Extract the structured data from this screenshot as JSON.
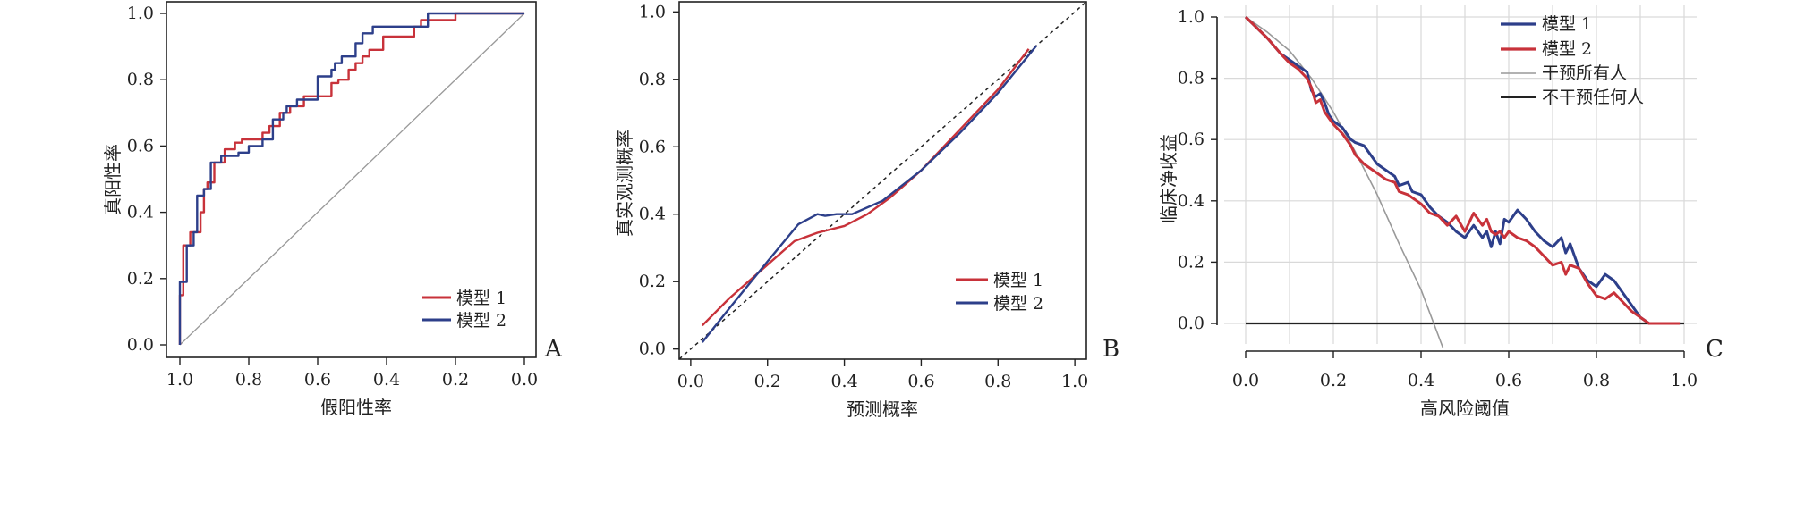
{
  "colors": {
    "model1": "#c8323a",
    "model2": "#2d3f8a",
    "grid": "#d9d9d9",
    "ref_gray": "#999999",
    "black": "#222222"
  },
  "chart_data": [
    {
      "panel": "A",
      "type": "line",
      "xlabel": "假阳性率",
      "ylabel": "真阳性率",
      "xlim": [
        1.0,
        0.0
      ],
      "ylim": [
        0.0,
        1.0
      ],
      "x_reversed": true,
      "xticks": [
        "1.0",
        "0.8",
        "0.6",
        "0.4",
        "0.2",
        "0.0"
      ],
      "yticks": [
        "0.0",
        "0.2",
        "0.4",
        "0.6",
        "0.8",
        "1.0"
      ],
      "grid": false,
      "legend_position": "bottom-right",
      "series": [
        {
          "name": "模型 1",
          "x": [
            1.0,
            1.0,
            0.99,
            0.99,
            0.97,
            0.97,
            0.94,
            0.94,
            0.93,
            0.93,
            0.92,
            0.92,
            0.9,
            0.9,
            0.87,
            0.87,
            0.84,
            0.84,
            0.82,
            0.82,
            0.76,
            0.76,
            0.74,
            0.74,
            0.71,
            0.71,
            0.68,
            0.68,
            0.64,
            0.64,
            0.56,
            0.56,
            0.54,
            0.54,
            0.51,
            0.51,
            0.49,
            0.49,
            0.47,
            0.47,
            0.45,
            0.45,
            0.41,
            0.41,
            0.32,
            0.32,
            0.3,
            0.3,
            0.2,
            0.2,
            0.0
          ],
          "y": [
            0.0,
            0.15,
            0.15,
            0.3,
            0.3,
            0.34,
            0.34,
            0.4,
            0.4,
            0.47,
            0.47,
            0.49,
            0.49,
            0.55,
            0.55,
            0.59,
            0.59,
            0.61,
            0.61,
            0.62,
            0.62,
            0.64,
            0.64,
            0.66,
            0.66,
            0.7,
            0.7,
            0.72,
            0.72,
            0.75,
            0.75,
            0.79,
            0.79,
            0.8,
            0.8,
            0.83,
            0.83,
            0.85,
            0.85,
            0.87,
            0.87,
            0.89,
            0.89,
            0.93,
            0.93,
            0.96,
            0.96,
            0.98,
            0.98,
            1.0,
            1.0
          ]
        },
        {
          "name": "模型 2",
          "x": [
            1.0,
            1.0,
            0.98,
            0.98,
            0.96,
            0.96,
            0.95,
            0.95,
            0.93,
            0.93,
            0.91,
            0.91,
            0.88,
            0.88,
            0.83,
            0.83,
            0.8,
            0.8,
            0.76,
            0.76,
            0.73,
            0.73,
            0.7,
            0.7,
            0.69,
            0.69,
            0.66,
            0.66,
            0.6,
            0.6,
            0.56,
            0.56,
            0.55,
            0.55,
            0.53,
            0.53,
            0.49,
            0.49,
            0.47,
            0.47,
            0.44,
            0.44,
            0.28,
            0.28,
            0.2,
            0.2,
            0.0
          ],
          "y": [
            0.0,
            0.19,
            0.19,
            0.3,
            0.3,
            0.34,
            0.34,
            0.45,
            0.45,
            0.47,
            0.47,
            0.55,
            0.55,
            0.57,
            0.57,
            0.58,
            0.58,
            0.6,
            0.6,
            0.62,
            0.62,
            0.68,
            0.68,
            0.7,
            0.7,
            0.72,
            0.72,
            0.74,
            0.74,
            0.81,
            0.81,
            0.83,
            0.83,
            0.85,
            0.85,
            0.87,
            0.87,
            0.91,
            0.91,
            0.94,
            0.94,
            0.96,
            0.96,
            1.0,
            1.0,
            1.0,
            1.0
          ]
        }
      ],
      "reference_line": {
        "x": [
          1.0,
          0.0
        ],
        "y": [
          0.0,
          1.0
        ]
      }
    },
    {
      "panel": "B",
      "type": "line",
      "xlabel": "预测概率",
      "ylabel": "真实观测概率",
      "xlim": [
        -0.03,
        1.03
      ],
      "ylim": [
        -0.03,
        1.03
      ],
      "xticks": [
        "0.0",
        "0.2",
        "0.4",
        "0.6",
        "0.8",
        "1.0"
      ],
      "yticks": [
        "0.0",
        "0.2",
        "0.4",
        "0.6",
        "0.8",
        "1.0"
      ],
      "grid": false,
      "legend_position": "bottom-right",
      "series": [
        {
          "name": "模型 1",
          "x": [
            0.03,
            0.1,
            0.2,
            0.27,
            0.33,
            0.4,
            0.46,
            0.52,
            0.6,
            0.7,
            0.8,
            0.88
          ],
          "y": [
            0.07,
            0.15,
            0.25,
            0.32,
            0.345,
            0.365,
            0.4,
            0.45,
            0.53,
            0.65,
            0.77,
            0.89
          ]
        },
        {
          "name": "模型 2",
          "x": [
            0.03,
            0.1,
            0.2,
            0.28,
            0.33,
            0.35,
            0.38,
            0.42,
            0.5,
            0.6,
            0.7,
            0.8,
            0.9
          ],
          "y": [
            0.02,
            0.12,
            0.26,
            0.37,
            0.4,
            0.395,
            0.4,
            0.4,
            0.44,
            0.53,
            0.64,
            0.76,
            0.9
          ]
        }
      ],
      "reference_line": {
        "x": [
          -0.03,
          1.03
        ],
        "y": [
          -0.03,
          1.03
        ]
      }
    },
    {
      "panel": "C",
      "type": "line",
      "xlabel": "高风险阈值",
      "ylabel": "临床净收益",
      "xlim": [
        -0.06,
        1.06
      ],
      "ylim": [
        -0.1,
        1.02
      ],
      "xticks": [
        "0.0",
        "0.2",
        "0.4",
        "0.6",
        "0.8",
        "1.0"
      ],
      "yticks": [
        "0.0",
        "0.2",
        "0.4",
        "0.6",
        "0.8",
        "1.0"
      ],
      "grid": true,
      "legend_position": "top-right",
      "series": [
        {
          "name": "模型 1",
          "x": [
            0.0,
            0.05,
            0.08,
            0.1,
            0.12,
            0.14,
            0.15,
            0.16,
            0.17,
            0.18,
            0.19,
            0.2,
            0.22,
            0.24,
            0.25,
            0.27,
            0.3,
            0.32,
            0.34,
            0.35,
            0.37,
            0.38,
            0.4,
            0.42,
            0.44,
            0.46,
            0.48,
            0.5,
            0.52,
            0.54,
            0.55,
            0.56,
            0.57,
            0.58,
            0.59,
            0.6,
            0.62,
            0.64,
            0.66,
            0.68,
            0.7,
            0.72,
            0.73,
            0.74,
            0.76,
            0.78,
            0.8,
            0.82,
            0.84,
            0.86,
            0.88,
            0.9,
            0.92,
            0.99
          ],
          "y": [
            1.0,
            0.93,
            0.88,
            0.86,
            0.84,
            0.82,
            0.76,
            0.74,
            0.75,
            0.72,
            0.68,
            0.66,
            0.64,
            0.6,
            0.59,
            0.58,
            0.52,
            0.5,
            0.48,
            0.45,
            0.46,
            0.43,
            0.42,
            0.38,
            0.35,
            0.33,
            0.3,
            0.28,
            0.32,
            0.28,
            0.3,
            0.25,
            0.3,
            0.26,
            0.34,
            0.33,
            0.37,
            0.34,
            0.3,
            0.27,
            0.25,
            0.28,
            0.23,
            0.26,
            0.18,
            0.14,
            0.12,
            0.16,
            0.14,
            0.1,
            0.06,
            0.02,
            0.0,
            0.0
          ]
        },
        {
          "name": "模型 2",
          "x": [
            0.0,
            0.05,
            0.08,
            0.1,
            0.12,
            0.14,
            0.15,
            0.16,
            0.17,
            0.18,
            0.19,
            0.2,
            0.22,
            0.24,
            0.25,
            0.27,
            0.3,
            0.32,
            0.34,
            0.35,
            0.37,
            0.38,
            0.4,
            0.42,
            0.44,
            0.46,
            0.48,
            0.5,
            0.52,
            0.54,
            0.55,
            0.56,
            0.57,
            0.58,
            0.59,
            0.6,
            0.62,
            0.64,
            0.66,
            0.68,
            0.7,
            0.72,
            0.73,
            0.74,
            0.76,
            0.78,
            0.8,
            0.82,
            0.84,
            0.86,
            0.88,
            0.9,
            0.92,
            0.99
          ],
          "y": [
            1.0,
            0.93,
            0.88,
            0.85,
            0.83,
            0.8,
            0.77,
            0.72,
            0.73,
            0.69,
            0.67,
            0.65,
            0.62,
            0.58,
            0.55,
            0.52,
            0.49,
            0.47,
            0.46,
            0.43,
            0.42,
            0.41,
            0.39,
            0.36,
            0.35,
            0.32,
            0.35,
            0.3,
            0.36,
            0.32,
            0.34,
            0.3,
            0.29,
            0.3,
            0.28,
            0.3,
            0.28,
            0.27,
            0.25,
            0.22,
            0.19,
            0.2,
            0.16,
            0.19,
            0.18,
            0.13,
            0.09,
            0.08,
            0.1,
            0.07,
            0.04,
            0.02,
            0.0,
            0.0
          ]
        },
        {
          "name": "干预所有人",
          "x": [
            0.0,
            0.05,
            0.1,
            0.15,
            0.2,
            0.25,
            0.3,
            0.35,
            0.4,
            0.45
          ],
          "y": [
            1.0,
            0.95,
            0.89,
            0.8,
            0.69,
            0.56,
            0.42,
            0.26,
            0.11,
            -0.08
          ]
        },
        {
          "name": "不干预任何人",
          "x": [
            0.0,
            1.0
          ],
          "y": [
            0.0,
            0.0
          ]
        }
      ]
    }
  ],
  "panels": {
    "A": "A",
    "B": "B",
    "C": "C"
  }
}
